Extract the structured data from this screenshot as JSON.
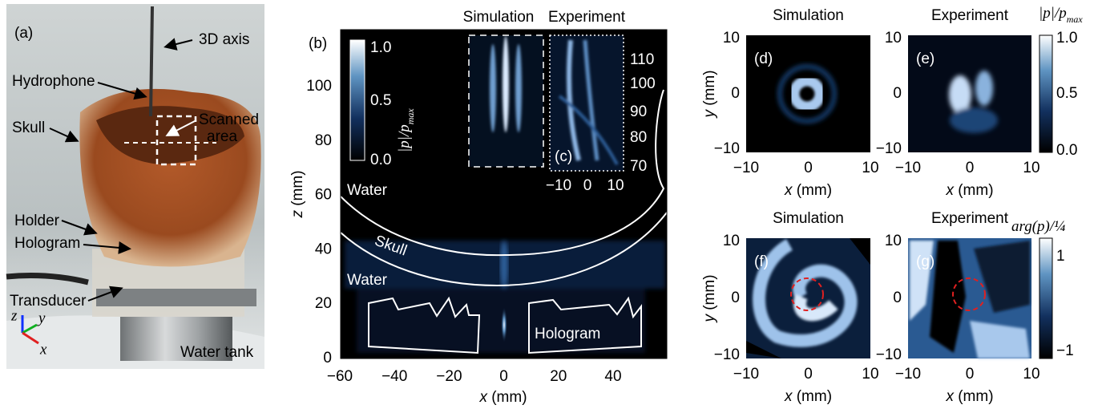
{
  "panel_a": {
    "label": "(a)",
    "annotations": [
      "3D axis",
      "Hydrophone",
      "Skull",
      "Scanned",
      "area",
      "Holder",
      "Hologram",
      "Transducer",
      "Water tank"
    ],
    "axes": [
      "z",
      "y",
      "x"
    ]
  },
  "panel_b": {
    "label": "(b)",
    "inset_label": "(c)",
    "titles": [
      "Simulation",
      "Experiment"
    ],
    "colorbar": {
      "label": "|p|/p",
      "label_sub": "max",
      "ticks": [
        "1.0",
        "0.5",
        "0.0"
      ]
    },
    "inset_yticks": [
      "110",
      "100",
      "90",
      "80",
      "70"
    ],
    "inset_xticks": [
      "−10",
      "0",
      "10"
    ],
    "regions": [
      "Water",
      "Skull",
      "Water",
      "Hologram"
    ],
    "yticks": [
      "0",
      "20",
      "40",
      "60",
      "80",
      "100"
    ],
    "xticks": [
      "−60",
      "−40",
      "−20",
      "0",
      "20",
      "40"
    ],
    "ylabel_var": "z",
    "ylabel_unit": " (mm)",
    "xlabel_var": "x",
    "xlabel_unit": " (mm)"
  },
  "panels_dg": {
    "panels": [
      {
        "label": "(d)",
        "title": "Simulation"
      },
      {
        "label": "(e)",
        "title": "Experiment"
      },
      {
        "label": "(f)",
        "title": "Simulation"
      },
      {
        "label": "(g)",
        "title": "Experiment"
      }
    ],
    "xticks": [
      "−10",
      "0",
      "10"
    ],
    "yticks": [
      "10",
      "0",
      "−10"
    ],
    "xlabel_var": "x",
    "ylabel_var": "y",
    "unit": " (mm)",
    "colorbar_top": {
      "label": "|p|/p",
      "label_sub": "max",
      "ticks": [
        "1.0",
        "0.5",
        "0.0"
      ]
    },
    "colorbar_bottom": {
      "label": "arg(p)/¼",
      "ticks": [
        "1",
        "−1"
      ]
    }
  }
}
